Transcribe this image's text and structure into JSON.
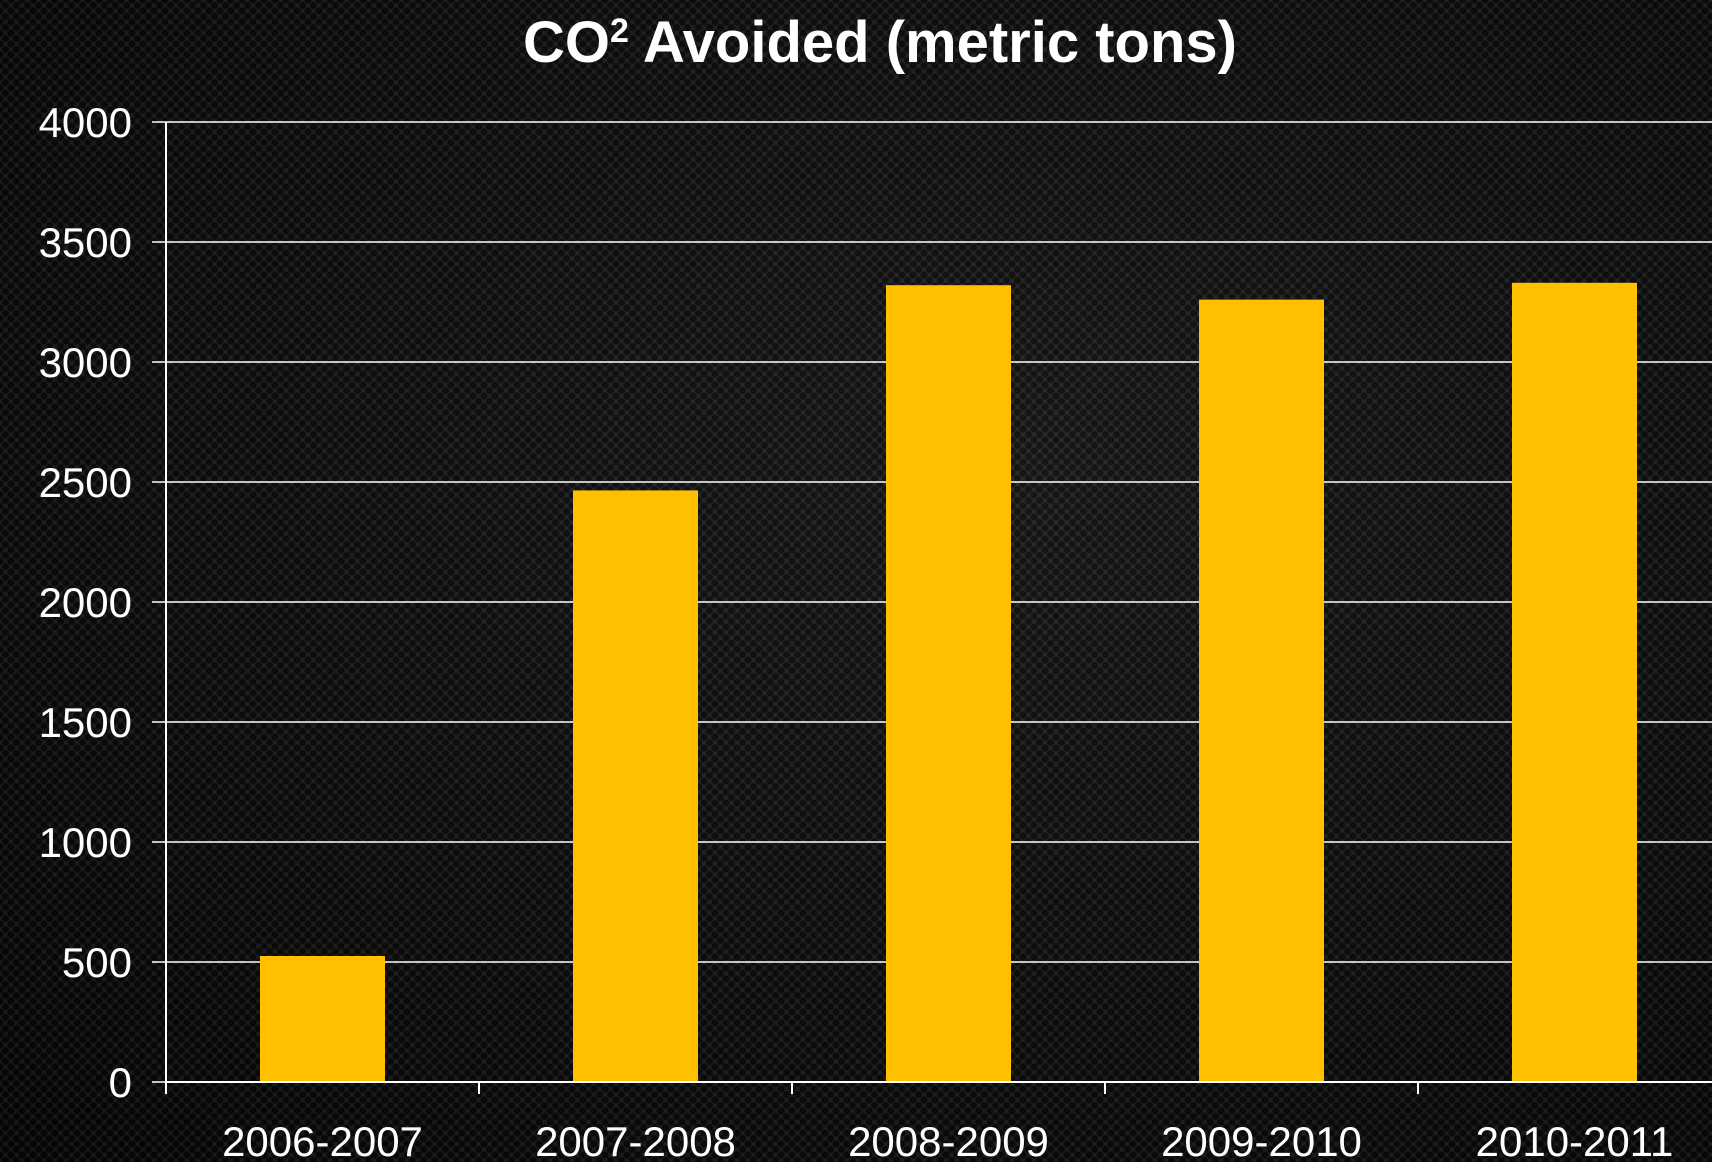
{
  "colors": {
    "bar": "#FFC000",
    "gridline": "#FFFFFF",
    "text": "#FFFFFF",
    "background": "#1E1E1E"
  },
  "chart_data": {
    "type": "bar",
    "title": {
      "main": "CO",
      "superscript": "2",
      "rest": " Avoided (metric tons)"
    },
    "xlabel": "",
    "ylabel": "",
    "categories": [
      "2006-2007",
      "2007-2008",
      "2008-2009",
      "2009-2010",
      "2010-2011"
    ],
    "values": [
      525,
      2465,
      3320,
      3260,
      3330
    ],
    "ylim": [
      0,
      4000
    ],
    "yticks": [
      "0",
      "500",
      "1000",
      "1500",
      "2000",
      "2500",
      "3000",
      "3500",
      "4000"
    ],
    "grid": true,
    "legend": "none"
  }
}
